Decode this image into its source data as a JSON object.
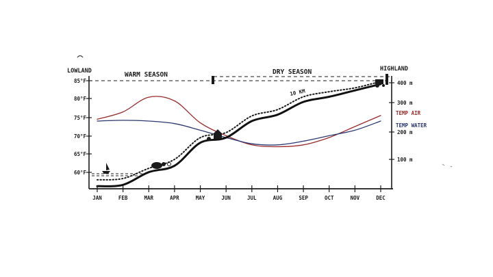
{
  "chart_data": {
    "type": "line",
    "title": "",
    "ends": {
      "left": "LOWLAND",
      "right": "HIGHLAND"
    },
    "seasons": [
      "WARM SEASON",
      "DRY SEASON"
    ],
    "months": [
      "JAN",
      "FEB",
      "MAR",
      "APR",
      "MAY",
      "JUN",
      "JUL",
      "AUG",
      "SEP",
      "OCT",
      "NOV",
      "DEC"
    ],
    "y_left_ticks": [
      "85°F",
      "80°F",
      "75°F",
      "70°F",
      "65°F",
      "60°F"
    ],
    "y_right_ticks": [
      "400 m",
      "300 m",
      "200 m",
      "100 m"
    ],
    "annotation": "10 KM",
    "ylim_feet": [
      57,
      85
    ],
    "series": [
      {
        "name": "TEMP AIR",
        "color": "#9a2a2a",
        "values": [
          74.5,
          76.5,
          80.5,
          79.5,
          73.5,
          70,
          67.5,
          67,
          67.5,
          69.5,
          72.5,
          75.5
        ]
      },
      {
        "name": "TEMP WATER",
        "color": "#2a3670",
        "values": [
          74,
          74.2,
          74,
          73.3,
          71.5,
          69.5,
          67.8,
          67.5,
          68.5,
          70,
          71.5,
          74
        ]
      }
    ],
    "elevation": {
      "unit": "m",
      "values": [
        -5,
        0,
        50,
        75,
        165,
        185,
        250,
        275,
        325,
        345,
        370,
        395
      ]
    },
    "elevation_dotted": {
      "values": [
        20,
        25,
        65,
        100,
        185,
        205,
        270,
        295,
        345,
        365,
        380,
        405
      ]
    }
  }
}
